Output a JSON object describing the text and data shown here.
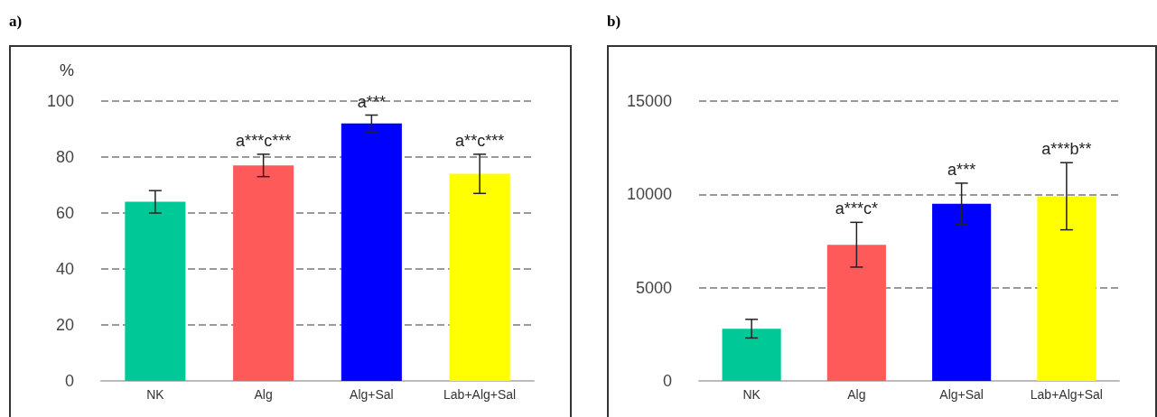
{
  "chart_data": [
    {
      "type": "bar",
      "title": "a)",
      "ylabel": "%",
      "categories": [
        "NK",
        "Alg",
        "Alg+Sal",
        "Lab+Alg+Sal"
      ],
      "values": [
        64,
        77,
        92,
        74
      ],
      "errors": [
        4,
        4,
        3,
        7
      ],
      "colors": [
        "#00c896",
        "#ff5a5a",
        "#0000ff",
        "#ffff00"
      ],
      "ylim": [
        0,
        100
      ],
      "yticks": [
        0,
        20,
        40,
        60,
        80,
        100
      ],
      "grid": "y",
      "annotations": [
        {
          "text": "a***c***",
          "x": "Alg",
          "y": 81
        },
        {
          "text": "a***",
          "x": "Alg+Sal",
          "y": 95
        },
        {
          "text": "a**c***",
          "x": "Lab+Alg+Sal",
          "y": 81
        }
      ]
    },
    {
      "type": "bar",
      "title": "b)",
      "categories": [
        "NK",
        "Alg",
        "Alg+Sal",
        "Lab+Alg+Sal"
      ],
      "values": [
        2800,
        7300,
        9500,
        9900
      ],
      "errors": [
        500,
        1200,
        1100,
        1800
      ],
      "colors": [
        "#00c896",
        "#ff5a5a",
        "#0000ff",
        "#ffff00"
      ],
      "ylim": [
        0,
        15000
      ],
      "yticks": [
        0,
        5000,
        10000,
        15000
      ],
      "grid": "y",
      "annotations": [
        {
          "text": "a***c*",
          "x": "Alg",
          "y": 8500
        },
        {
          "text": "a***",
          "x": "Alg+Sal",
          "y": 10600
        },
        {
          "text": "a***b**",
          "x": "Lab+Alg+Sal",
          "y": 11700
        }
      ]
    }
  ]
}
